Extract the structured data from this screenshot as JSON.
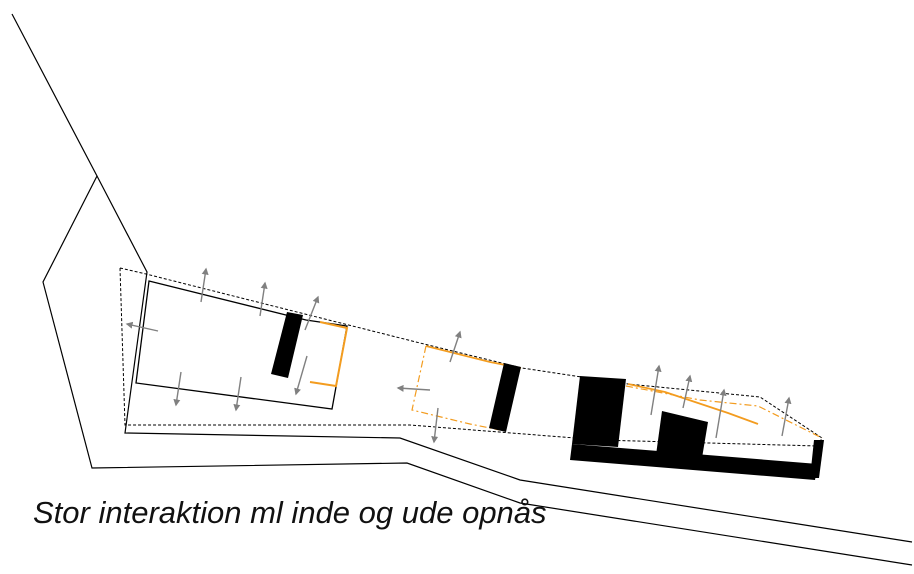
{
  "caption": "Stor interaktion ml inde og ude opnås",
  "colors": {
    "line": "#000000",
    "accent": "#f39c1f",
    "arrow": "#808080",
    "background": "#ffffff"
  }
}
